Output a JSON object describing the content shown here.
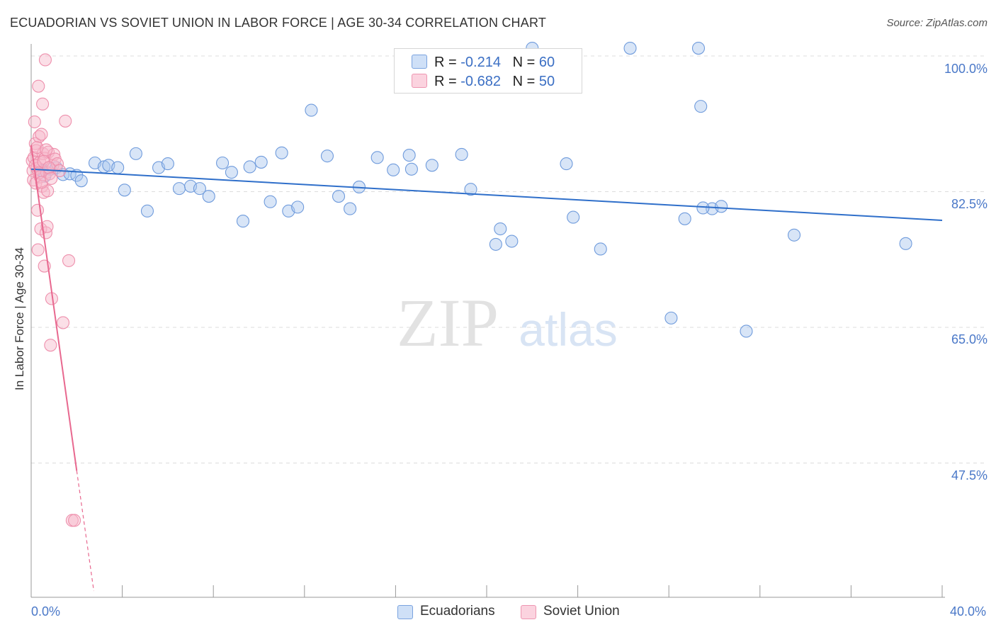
{
  "header": {
    "title": "ECUADORIAN VS SOVIET UNION IN LABOR FORCE | AGE 30-34 CORRELATION CHART",
    "source": "Source: ZipAtlas.com"
  },
  "watermark": {
    "zip": "ZIP",
    "atlas": "atlas"
  },
  "stats": [
    {
      "r_label": "R =",
      "r_value": "-0.214",
      "n_label": "N =",
      "n_value": "60",
      "color": "#a9c5ee"
    },
    {
      "r_label": "R =",
      "r_value": "-0.682",
      "n_label": "N =",
      "n_value": "50",
      "color": "#f6b8ca"
    }
  ],
  "legend": [
    {
      "name": "Ecuadorians",
      "color": "#a9c5ee"
    },
    {
      "name": "Soviet Union",
      "color": "#f6b8ca"
    }
  ],
  "colors": {
    "blue_line": "#2f6fca",
    "pink_line": "#e8688f",
    "blue_fill": "#a9c5ee",
    "pink_fill": "#f6b8ca",
    "tick_text": "#4a78c8"
  },
  "chart_data": {
    "type": "scatter",
    "title": "ECUADORIAN VS SOVIET UNION IN LABOR FORCE | AGE 30-34 CORRELATION CHART",
    "xlabel": "",
    "ylabel": "In Labor Force | Age 30-34",
    "xlim": [
      0,
      40
    ],
    "ylim": [
      30,
      102
    ],
    "x_tick_labels": [
      "0.0%",
      "40.0%"
    ],
    "y_ticks": [
      47.5,
      65.0,
      82.5,
      100.0
    ],
    "y_tick_labels": [
      "47.5%",
      "65.0%",
      "82.5%",
      "100.0%"
    ],
    "grid": true,
    "legend_position": "bottom-center",
    "series": [
      {
        "name": "Ecuadorians",
        "points": [
          [
            0.45,
            85.2
          ],
          [
            0.6,
            84.5
          ],
          [
            0.85,
            85.4
          ],
          [
            1.1,
            85.6
          ],
          [
            1.4,
            84.7
          ],
          [
            1.7,
            84.8
          ],
          [
            2.0,
            84.6
          ],
          [
            2.2,
            83.9
          ],
          [
            2.8,
            86.2
          ],
          [
            3.2,
            85.7
          ],
          [
            3.4,
            85.9
          ],
          [
            3.8,
            85.6
          ],
          [
            4.1,
            82.7
          ],
          [
            4.6,
            87.4
          ],
          [
            5.1,
            80.0
          ],
          [
            5.6,
            85.6
          ],
          [
            6.0,
            86.1
          ],
          [
            6.5,
            82.9
          ],
          [
            7.0,
            83.2
          ],
          [
            7.4,
            82.9
          ],
          [
            7.8,
            81.9
          ],
          [
            8.4,
            86.2
          ],
          [
            8.8,
            85.0
          ],
          [
            9.3,
            78.7
          ],
          [
            9.6,
            85.7
          ],
          [
            10.1,
            86.3
          ],
          [
            10.5,
            81.2
          ],
          [
            11.0,
            87.5
          ],
          [
            11.3,
            80.0
          ],
          [
            11.7,
            80.5
          ],
          [
            12.3,
            93.0
          ],
          [
            13.0,
            87.1
          ],
          [
            13.5,
            81.9
          ],
          [
            14.0,
            80.3
          ],
          [
            14.4,
            83.1
          ],
          [
            15.2,
            86.9
          ],
          [
            15.9,
            85.3
          ],
          [
            16.6,
            87.2
          ],
          [
            16.7,
            85.4
          ],
          [
            17.6,
            85.9
          ],
          [
            18.9,
            87.3
          ],
          [
            19.3,
            82.8
          ],
          [
            20.4,
            75.7
          ],
          [
            20.6,
            77.7
          ],
          [
            21.1,
            76.1
          ],
          [
            22.0,
            101.0
          ],
          [
            23.5,
            86.1
          ],
          [
            23.8,
            79.2
          ],
          [
            25.0,
            75.1
          ],
          [
            26.3,
            101.0
          ],
          [
            28.1,
            66.2
          ],
          [
            28.7,
            79.0
          ],
          [
            29.3,
            101.0
          ],
          [
            29.4,
            93.5
          ],
          [
            29.9,
            80.3
          ],
          [
            30.3,
            80.6
          ],
          [
            31.4,
            64.5
          ],
          [
            33.5,
            76.9
          ],
          [
            38.4,
            75.8
          ],
          [
            29.5,
            80.4
          ]
        ]
      },
      {
        "name": "Soviet Union",
        "points": [
          [
            0.05,
            86.5
          ],
          [
            0.08,
            85.2
          ],
          [
            0.1,
            84.0
          ],
          [
            0.12,
            86.9
          ],
          [
            0.15,
            91.5
          ],
          [
            0.18,
            88.7
          ],
          [
            0.2,
            83.6
          ],
          [
            0.22,
            87.8
          ],
          [
            0.25,
            85.5
          ],
          [
            0.28,
            80.1
          ],
          [
            0.3,
            75.0
          ],
          [
            0.32,
            96.1
          ],
          [
            0.35,
            89.6
          ],
          [
            0.38,
            86.3
          ],
          [
            0.4,
            84.4
          ],
          [
            0.42,
            77.7
          ],
          [
            0.45,
            89.9
          ],
          [
            0.48,
            83.2
          ],
          [
            0.5,
            93.8
          ],
          [
            0.52,
            87.4
          ],
          [
            0.55,
            82.4
          ],
          [
            0.58,
            72.9
          ],
          [
            0.6,
            86.8
          ],
          [
            0.62,
            99.5
          ],
          [
            0.65,
            77.2
          ],
          [
            0.68,
            85.0
          ],
          [
            0.7,
            78.0
          ],
          [
            0.72,
            82.6
          ],
          [
            0.75,
            87.6
          ],
          [
            0.8,
            84.8
          ],
          [
            0.85,
            62.7
          ],
          [
            0.9,
            68.7
          ],
          [
            0.95,
            85.9
          ],
          [
            1.0,
            87.3
          ],
          [
            1.05,
            86.7
          ],
          [
            1.15,
            86.1
          ],
          [
            1.25,
            85.2
          ],
          [
            1.4,
            65.6
          ],
          [
            1.5,
            91.6
          ],
          [
            1.65,
            73.6
          ],
          [
            1.8,
            40.1
          ],
          [
            1.9,
            40.1
          ],
          [
            0.18,
            85.9
          ],
          [
            0.26,
            88.2
          ],
          [
            0.34,
            84.9
          ],
          [
            0.46,
            83.7
          ],
          [
            0.54,
            86.4
          ],
          [
            0.66,
            87.9
          ],
          [
            0.78,
            85.6
          ],
          [
            0.88,
            84.2
          ]
        ]
      }
    ],
    "trendlines": [
      {
        "series": "Ecuadorians",
        "from": [
          0.0,
          85.4
        ],
        "to": [
          40.0,
          78.8
        ]
      },
      {
        "series": "Soviet Union",
        "from": [
          0.0,
          88.5
        ],
        "to": [
          2.0,
          46.5
        ],
        "dashed_to": [
          2.75,
          31.0
        ]
      }
    ]
  }
}
